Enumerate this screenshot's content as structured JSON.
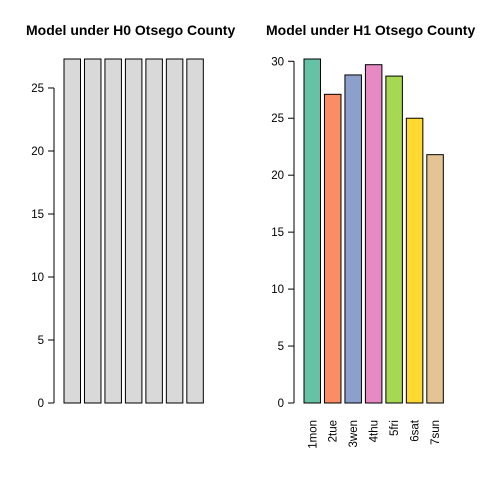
{
  "chart_data": [
    {
      "type": "bar",
      "title": "Model under H0 Otsego County",
      "categories": [
        "1mon",
        "2tue",
        "3wen",
        "4thu",
        "5fri",
        "6sat",
        "7sun"
      ],
      "show_category_labels": false,
      "values": [
        27.3,
        27.3,
        27.3,
        27.3,
        27.3,
        27.3,
        27.3
      ],
      "colors": [
        "#d9d9d9",
        "#d9d9d9",
        "#d9d9d9",
        "#d9d9d9",
        "#d9d9d9",
        "#d9d9d9",
        "#d9d9d9"
      ],
      "ylim": [
        0,
        27.3
      ],
      "yticks": [
        0,
        5,
        10,
        15,
        20,
        25
      ],
      "xlabel": "",
      "ylabel": ""
    },
    {
      "type": "bar",
      "title": "Model under H1 Otsego County",
      "categories": [
        "1mon",
        "2tue",
        "3wen",
        "4thu",
        "5fri",
        "6sat",
        "7sun"
      ],
      "show_category_labels": true,
      "values": [
        30.2,
        27.1,
        28.8,
        29.7,
        28.7,
        25.0,
        21.8
      ],
      "colors": [
        "#66c2a5",
        "#fc8d62",
        "#8da0cb",
        "#e78ac3",
        "#a6d854",
        "#ffd92f",
        "#e5c494"
      ],
      "ylim": [
        0,
        30.2
      ],
      "yticks": [
        0,
        5,
        10,
        15,
        20,
        25,
        30
      ],
      "xlabel": "",
      "ylabel": ""
    }
  ]
}
